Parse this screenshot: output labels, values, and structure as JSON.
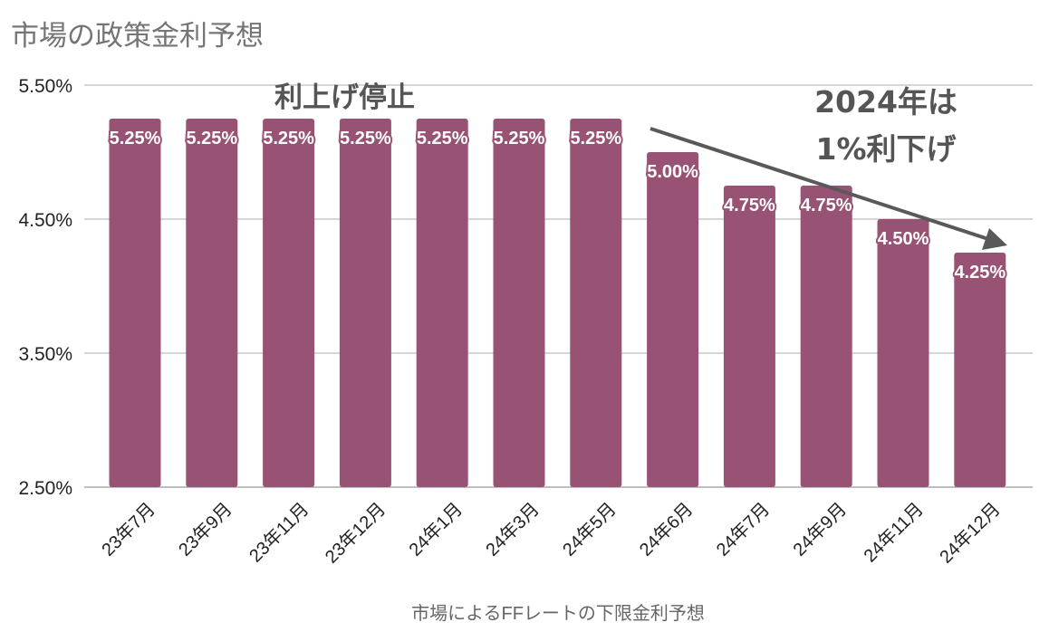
{
  "chart_data": {
    "type": "bar",
    "title": "市場の政策金利予想",
    "xlabel": "市場によるFFレートの下限金利予想",
    "ylabel": "",
    "ylim": [
      2.5,
      5.5
    ],
    "yticks": [
      "5.50%",
      "4.50%",
      "3.50%",
      "2.50%"
    ],
    "ytick_values": [
      5.5,
      4.5,
      3.5,
      2.5
    ],
    "grid": true,
    "categories": [
      "23年7月",
      "23年9月",
      "23年11月",
      "23年12月",
      "24年1月",
      "24年3月",
      "24年5月",
      "24年6月",
      "24年7月",
      "24年9月",
      "24年11月",
      "24年12月"
    ],
    "values": [
      5.25,
      5.25,
      5.25,
      5.25,
      5.25,
      5.25,
      5.25,
      5.0,
      4.75,
      4.75,
      4.5,
      4.25
    ],
    "data_labels": [
      "5.25%",
      "5.25%",
      "5.25%",
      "5.25%",
      "5.25%",
      "5.25%",
      "5.25%",
      "5.00%",
      "4.75%",
      "4.75%",
      "4.50%",
      "4.25%"
    ],
    "annotations": {
      "pause": "利上げ停止",
      "cut_line1": "2024年は",
      "cut_line2": "1%利下げ"
    },
    "colors": {
      "bar": "#985273",
      "grid": "#c8c8c8",
      "title": "#757575",
      "annotation": "#555555",
      "arrow": "#595959"
    }
  }
}
